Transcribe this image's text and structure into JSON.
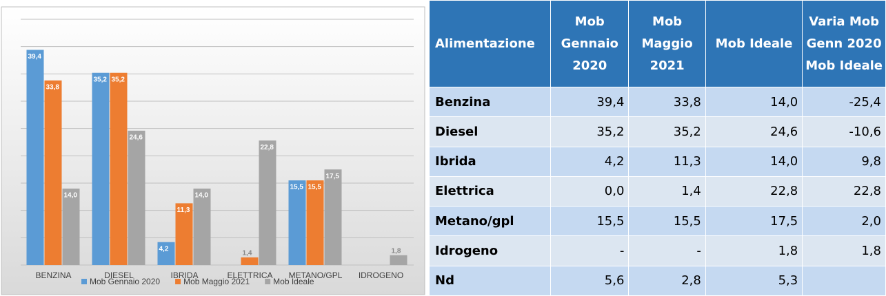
{
  "chart_data": {
    "type": "bar",
    "categories": [
      "BENZINA",
      "DIESEL",
      "IBRIDA",
      "ELETTRICA",
      "METANO/GPL",
      "IDROGENO"
    ],
    "series": [
      {
        "name": "Mob Gennaio 2020",
        "color": "#5b9bd5",
        "values": [
          39.4,
          35.2,
          4.2,
          null,
          15.5,
          null
        ],
        "value_labels": [
          "39,4",
          "35,2",
          "4,2",
          null,
          "15,5",
          null
        ]
      },
      {
        "name": "Mob Maggio 2021",
        "color": "#ed7d31",
        "values": [
          33.8,
          35.2,
          11.3,
          1.4,
          15.5,
          null
        ],
        "value_labels": [
          "33,8",
          "35,2",
          "11,3",
          "1,4",
          "15,5",
          null
        ]
      },
      {
        "name": "Mob Ideale",
        "color": "#a5a5a5",
        "values": [
          14.0,
          24.6,
          14.0,
          22.8,
          17.5,
          1.8
        ],
        "value_labels": [
          "14,0",
          "24,6",
          "14,0",
          "22,8",
          "17,5",
          "1,8"
        ]
      }
    ],
    "ylim": [
      0,
      45
    ],
    "yticks": [
      0,
      5,
      10,
      15,
      20,
      25,
      30,
      35,
      40,
      45
    ],
    "grid": true,
    "legend": "bottom"
  },
  "table": {
    "header": [
      "Alimentazione",
      "Mob Gennaio 2020",
      "Mob Maggio 2021",
      "Mob Ideale",
      "Varia Mob Genn 2020 Mob Ideale"
    ],
    "rows": [
      [
        "Benzina",
        "39,4",
        "33,8",
        "14,0",
        "-25,4"
      ],
      [
        "Diesel",
        "35,2",
        "35,2",
        "24,6",
        "-10,6"
      ],
      [
        "Ibrida",
        "4,2",
        "11,3",
        "14,0",
        "9,8"
      ],
      [
        "Elettrica",
        "0,0",
        "1,4",
        "22,8",
        "22,8"
      ],
      [
        "Metano/gpl",
        "15,5",
        "15,5",
        "17,5",
        "2,0"
      ],
      [
        "Idrogeno",
        "-",
        "-",
        "1,8",
        "1,8"
      ],
      [
        "Nd",
        "5,6",
        "2,8",
        "5,3",
        ""
      ]
    ]
  }
}
